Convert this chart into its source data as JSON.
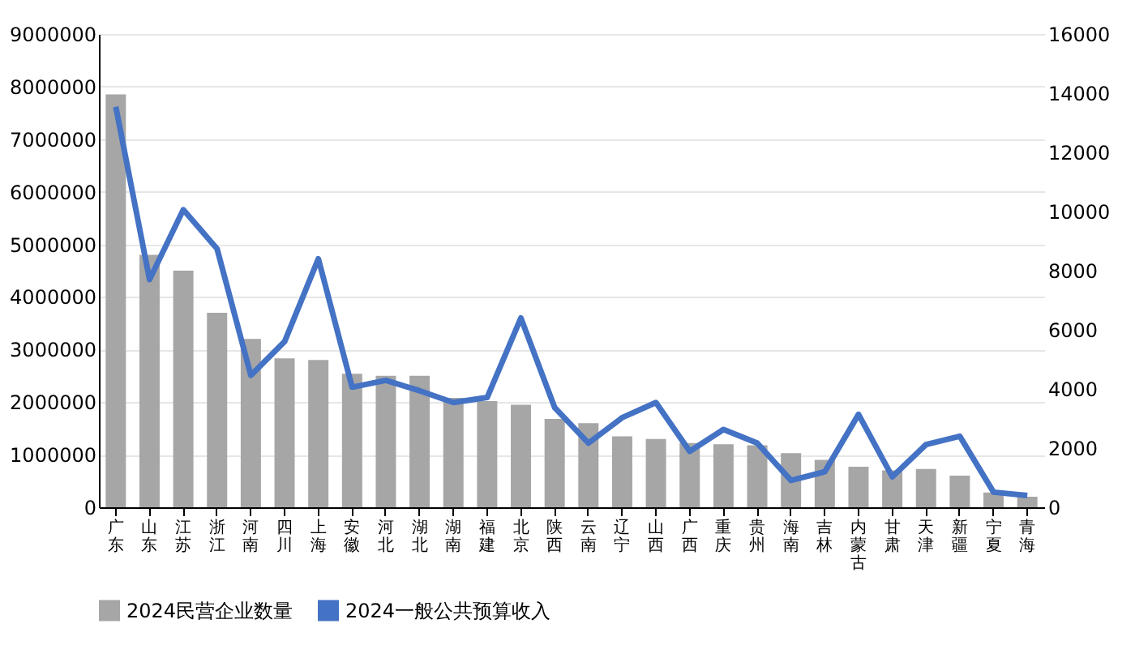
{
  "chart_data": {
    "type": "bar",
    "categories": [
      "广东",
      "山东",
      "江苏",
      "浙江",
      "河南",
      "四川",
      "上海",
      "安徽",
      "河北",
      "湖北",
      "湖南",
      "福建",
      "北京",
      "陕西",
      "云南",
      "辽宁",
      "山西",
      "广西",
      "重庆",
      "贵州",
      "海南",
      "吉林",
      "内蒙古",
      "甘肃",
      "天津",
      "新疆",
      "宁夏",
      "青海"
    ],
    "series": [
      {
        "name": "2024民营企业数量",
        "type": "bar",
        "color": "#a6a6a6",
        "values": [
          7850000,
          4800000,
          4500000,
          3700000,
          3200000,
          2830000,
          2800000,
          2540000,
          2500000,
          2500000,
          2080000,
          2020000,
          1950000,
          1680000,
          1600000,
          1350000,
          1300000,
          1220000,
          1200000,
          1180000,
          1030000,
          900000,
          770000,
          700000,
          730000,
          600000,
          280000,
          200000
        ]
      },
      {
        "name": "2024一般公共预算收入",
        "type": "line",
        "axis": "y2",
        "color": "#4472c4",
        "values": [
          13540,
          7700,
          10060,
          8740,
          4460,
          5600,
          8400,
          4060,
          4290,
          3940,
          3540,
          3710,
          6400,
          3370,
          2170,
          3030,
          3540,
          1890,
          2630,
          2170,
          910,
          1200,
          3140,
          1030,
          2120,
          2400,
          510,
          400
        ]
      }
    ],
    "ylim": [
      0,
      9000000
    ],
    "yticks": [
      0,
      1000000,
      2000000,
      3000000,
      4000000,
      5000000,
      6000000,
      7000000,
      8000000,
      9000000
    ],
    "y2lim": [
      0,
      16000
    ],
    "y2ticks": [
      0,
      2000,
      4000,
      6000,
      8000,
      10000,
      12000,
      14000,
      16000
    ],
    "grid": "y",
    "legend": "bottom",
    "marker": "none",
    "line_style": "solid"
  }
}
